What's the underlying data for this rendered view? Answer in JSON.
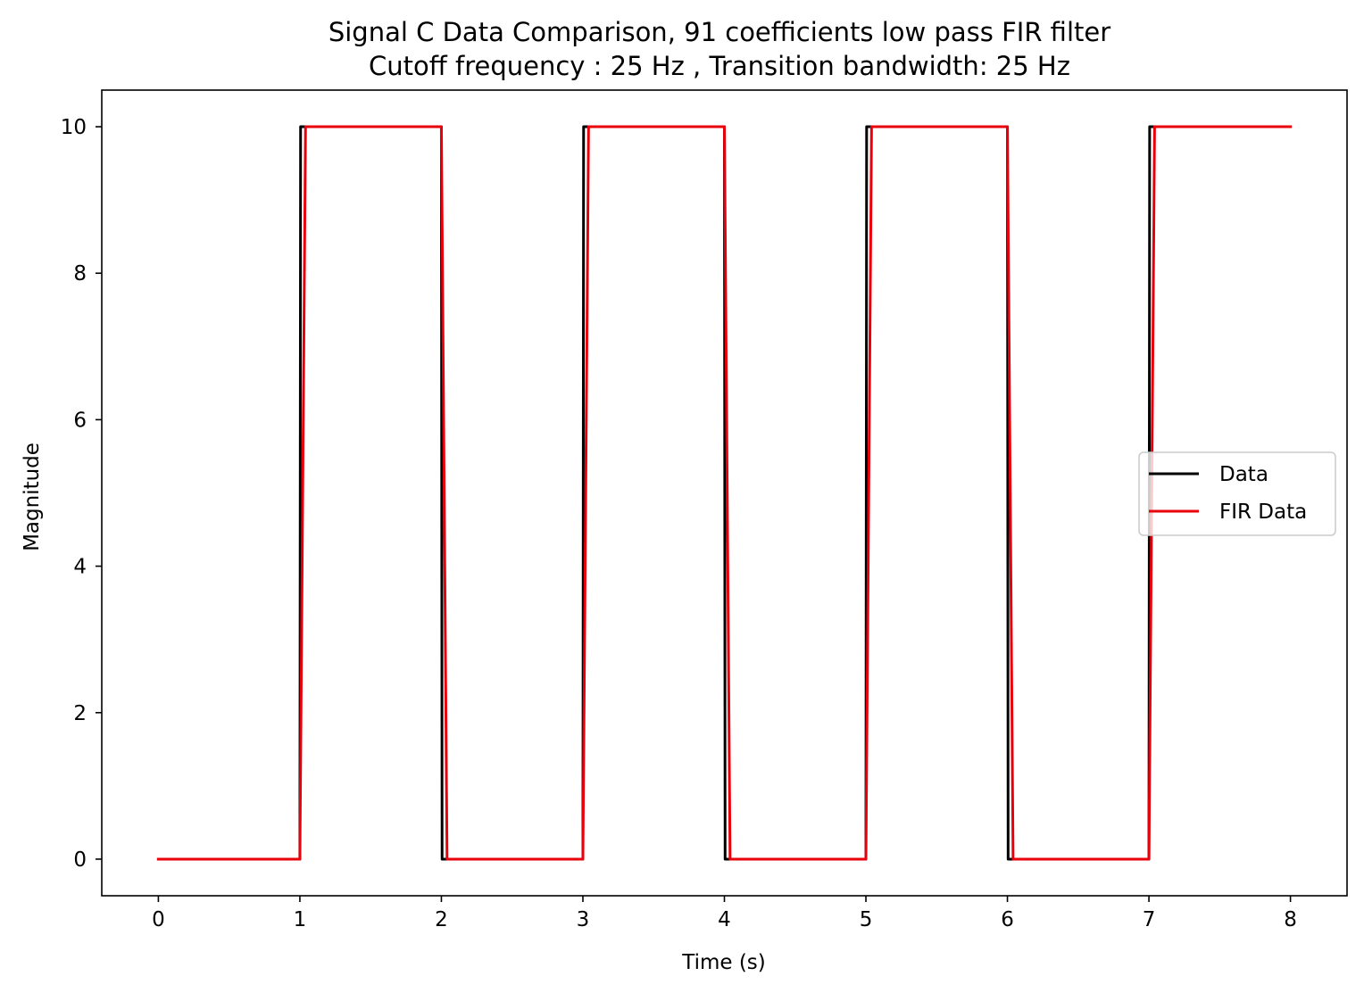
{
  "chart_data": {
    "type": "line",
    "title": "Signal C Data Comparison, 91 coefficients low pass FIR filter",
    "subtitle": "Cutoff frequency : 25 Hz , Transition bandwidth: 25 Hz",
    "xlabel": "Time (s)",
    "ylabel": "Magnitude",
    "xlim": [
      -0.4,
      8.4
    ],
    "ylim": [
      -0.5,
      10.5
    ],
    "x_ticks": [
      0,
      1,
      2,
      3,
      4,
      5,
      6,
      7,
      8
    ],
    "y_ticks": [
      0,
      2,
      4,
      6,
      8,
      10
    ],
    "grid": false,
    "legend_position": "center-right",
    "series": [
      {
        "name": "Data",
        "color": "#000000",
        "x": [
          0,
          1,
          1.005,
          2,
          2.005,
          3,
          3.005,
          4,
          4.005,
          5,
          5.005,
          6,
          6.005,
          7,
          7.005,
          8
        ],
        "y": [
          0,
          0,
          10,
          10,
          0,
          0,
          10,
          10,
          0,
          0,
          10,
          10,
          0,
          0,
          10,
          10
        ]
      },
      {
        "name": "FIR Data",
        "color": "#e8000b",
        "x": [
          0,
          1,
          1.04,
          2,
          2.04,
          3,
          3.04,
          4,
          4.04,
          5,
          5.04,
          6,
          6.04,
          7,
          7.04,
          8
        ],
        "y": [
          0,
          0,
          10,
          10,
          0,
          0,
          10,
          10,
          0,
          0,
          10,
          10,
          0,
          0,
          10,
          10
        ]
      }
    ]
  }
}
